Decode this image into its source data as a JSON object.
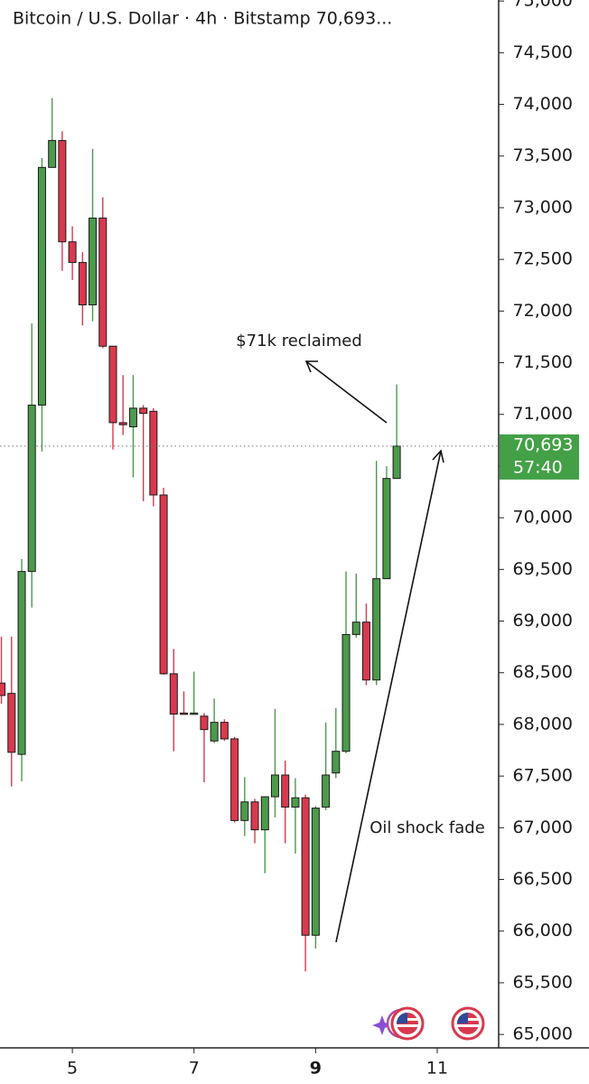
{
  "chart_data": {
    "type": "candlestick",
    "title": "Bitcoin / U.S. Dollar · 4h · Bitstamp  70,693...",
    "x": [
      3.833,
      4,
      4.167,
      4.333,
      4.5,
      4.667,
      4.833,
      5,
      5.167,
      5.333,
      5.5,
      5.667,
      5.833,
      6,
      6.167,
      6.333,
      6.5,
      6.667,
      6.833,
      7,
      7.167,
      7.333,
      7.5,
      7.667,
      7.833,
      8,
      8.167,
      8.333,
      8.5,
      8.667,
      8.833,
      9,
      9.167,
      9.333,
      9.5,
      9.667,
      9.833,
      10,
      10.167,
      10.333
    ],
    "open": [
      68400,
      68300,
      67710,
      69480,
      71090,
      73390,
      73650,
      72670,
      72470,
      72060,
      72900,
      71660,
      70920,
      70880,
      71060,
      71030,
      70220,
      68490,
      68110,
      68100,
      68080,
      67840,
      68020,
      67860,
      67070,
      67250,
      66980,
      67300,
      67510,
      67200,
      67290,
      65960,
      67200,
      67530,
      67740,
      68870,
      68990,
      68430,
      69410,
      70380
    ],
    "high": [
      68850,
      68850,
      69600,
      71880,
      73480,
      74060,
      73740,
      72820,
      72570,
      73570,
      73100,
      71660,
      71380,
      71380,
      71090,
      71060,
      70290,
      68730,
      68320,
      68510,
      68110,
      68250,
      68050,
      67880,
      67490,
      67280,
      67300,
      68150,
      67650,
      67480,
      67320,
      67210,
      68020,
      68160,
      69480,
      69460,
      69170,
      70550,
      70500,
      71290
    ],
    "low": [
      68200,
      67400,
      67450,
      69130,
      70640,
      73390,
      72390,
      72300,
      71860,
      71900,
      71640,
      70660,
      70800,
      70390,
      70160,
      70110,
      68480,
      67740,
      68100,
      68100,
      67440,
      67820,
      67840,
      67050,
      66920,
      66850,
      66560,
      67100,
      66850,
      66750,
      65610,
      65830,
      67170,
      67480,
      67720,
      68840,
      68380,
      68380,
      69410,
      70380
    ],
    "close": [
      68280,
      67730,
      69480,
      71090,
      73390,
      73650,
      72670,
      72470,
      72060,
      72900,
      71660,
      70920,
      70900,
      71060,
      71010,
      70220,
      68490,
      68100,
      68100,
      68110,
      67950,
      68020,
      67860,
      67070,
      67250,
      66980,
      67300,
      67510,
      67200,
      67290,
      65960,
      67190,
      67510,
      67740,
      68870,
      68990,
      68430,
      69410,
      70380,
      70693
    ],
    "up_color": "#4c9a4c",
    "down_color": "#d9394e",
    "xlim": [
      3.81,
      12.01
    ],
    "xticks": [
      5,
      7,
      9,
      11
    ],
    "ylim": [
      64870,
      75010
    ],
    "yticks": [
      {
        "value": 65000,
        "label": "65,000"
      },
      {
        "value": 65500,
        "label": "65,500"
      },
      {
        "value": 66000,
        "label": "66,000"
      },
      {
        "value": 66500,
        "label": "66,500"
      },
      {
        "value": 67000,
        "label": "67,000"
      },
      {
        "value": 67500,
        "label": "67,500"
      },
      {
        "value": 68000,
        "label": "68,000"
      },
      {
        "value": 68500,
        "label": "68,500"
      },
      {
        "value": 69000,
        "label": "69,000"
      },
      {
        "value": 69500,
        "label": "69,500"
      },
      {
        "value": 70000,
        "label": "70,000"
      },
      {
        "value": 70500,
        "label": "70,500"
      },
      {
        "value": 71000,
        "label": "71,000"
      },
      {
        "value": 71500,
        "label": "71,500"
      },
      {
        "value": 72000,
        "label": "72,000"
      },
      {
        "value": 72500,
        "label": "72,500"
      },
      {
        "value": 73000,
        "label": "73,000"
      },
      {
        "value": 73500,
        "label": "73,500"
      },
      {
        "value": 74000,
        "label": "74,000"
      },
      {
        "value": 74500,
        "label": "74,500"
      },
      {
        "value": 75000,
        "label": "75,000"
      }
    ],
    "last_price": {
      "value": 70693,
      "label": "70,693",
      "countdown": "57:40",
      "color": "#43a047"
    },
    "annotations": [
      "$71k reclaimed",
      "Oil shock fade"
    ]
  }
}
